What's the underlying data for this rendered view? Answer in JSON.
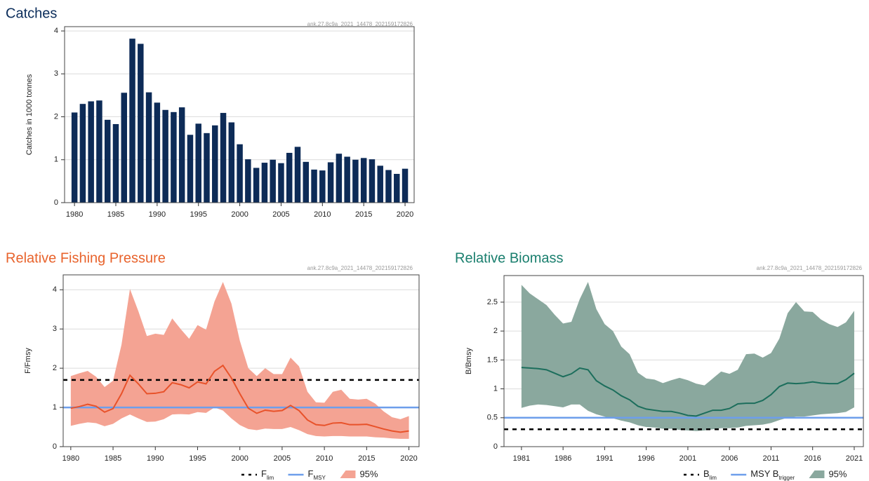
{
  "chart_data": [
    {
      "type": "bar",
      "title": "Catches",
      "title_color": "#0b2d5b",
      "subtitle": "ank.27.8c9a_2021_14478_202159172826",
      "y_label": "Catches in 1000 tonnes",
      "color": "#0d2b57",
      "grid": true,
      "x": [
        1980,
        1981,
        1982,
        1983,
        1984,
        1985,
        1986,
        1987,
        1988,
        1989,
        1990,
        1991,
        1992,
        1993,
        1994,
        1995,
        1996,
        1997,
        1998,
        1999,
        2000,
        2001,
        2002,
        2003,
        2004,
        2005,
        2006,
        2007,
        2008,
        2009,
        2010,
        2011,
        2012,
        2013,
        2014,
        2015,
        2016,
        2017,
        2018,
        2019,
        2020
      ],
      "values": [
        2.1,
        2.3,
        2.36,
        2.38,
        1.93,
        1.83,
        2.56,
        3.82,
        3.7,
        2.57,
        2.33,
        2.16,
        2.11,
        2.22,
        1.58,
        1.84,
        1.62,
        1.8,
        2.09,
        1.87,
        1.36,
        1.01,
        0.81,
        0.93,
        1.0,
        0.92,
        1.16,
        1.3,
        0.95,
        0.77,
        0.75,
        0.94,
        1.14,
        1.07,
        1.0,
        1.04,
        1.01,
        0.86,
        0.76,
        0.67,
        0.79
      ],
      "xlim": [
        1978.8,
        2021.1
      ],
      "xticks": [
        1980,
        1985,
        1990,
        1995,
        2000,
        2005,
        2010,
        2015,
        2020
      ],
      "ylim": [
        0,
        4.1
      ],
      "yticks": [
        0,
        1,
        2,
        3,
        4
      ]
    },
    {
      "type": "line",
      "title": "Relative Fishing Pressure",
      "title_color": "#e8632c",
      "subtitle": "ank.27.8c9a_2021_14478_202159172826",
      "y_label": "F/Fmsy",
      "grid": true,
      "x": [
        1980,
        1981,
        1982,
        1983,
        1984,
        1985,
        1986,
        1987,
        1988,
        1989,
        1990,
        1991,
        1992,
        1993,
        1994,
        1995,
        1996,
        1997,
        1998,
        1999,
        2000,
        2001,
        2002,
        2003,
        2004,
        2005,
        2006,
        2007,
        2008,
        2009,
        2010,
        2011,
        2012,
        2013,
        2014,
        2015,
        2016,
        2017,
        2018,
        2019,
        2020
      ],
      "series": [
        {
          "color": "#e8522a",
          "values": [
            0.98,
            1.02,
            1.08,
            1.03,
            0.88,
            0.97,
            1.35,
            1.82,
            1.6,
            1.35,
            1.36,
            1.4,
            1.63,
            1.58,
            1.5,
            1.65,
            1.6,
            1.92,
            2.07,
            1.75,
            1.35,
            0.98,
            0.85,
            0.93,
            0.9,
            0.92,
            1.05,
            0.92,
            0.68,
            0.56,
            0.54,
            0.6,
            0.61,
            0.56,
            0.56,
            0.57,
            0.51,
            0.45,
            0.4,
            0.37,
            0.4
          ]
        }
      ],
      "band": {
        "name": "95%",
        "color": "#f4a393",
        "upper": [
          1.8,
          1.87,
          1.93,
          1.78,
          1.52,
          1.68,
          2.6,
          4.02,
          3.45,
          2.82,
          2.88,
          2.85,
          3.27,
          3.0,
          2.75,
          3.1,
          2.98,
          3.7,
          4.2,
          3.65,
          2.7,
          2.0,
          1.8,
          2.0,
          1.85,
          1.85,
          2.27,
          2.05,
          1.4,
          1.13,
          1.12,
          1.4,
          1.45,
          1.22,
          1.2,
          1.22,
          1.1,
          0.9,
          0.75,
          0.7,
          0.78
        ],
        "lower": [
          0.53,
          0.58,
          0.62,
          0.6,
          0.52,
          0.58,
          0.72,
          0.82,
          0.72,
          0.63,
          0.64,
          0.7,
          0.82,
          0.83,
          0.82,
          0.88,
          0.86,
          1.0,
          0.92,
          0.72,
          0.55,
          0.45,
          0.42,
          0.46,
          0.45,
          0.45,
          0.5,
          0.42,
          0.32,
          0.27,
          0.26,
          0.27,
          0.27,
          0.26,
          0.26,
          0.26,
          0.24,
          0.23,
          0.21,
          0.2,
          0.2
        ]
      },
      "reference_lines": [
        {
          "name": "F",
          "name_sub": "lim",
          "value": 1.7,
          "color": "#000000",
          "dashed": true
        },
        {
          "name": "F",
          "name_sub": "MSY",
          "value": 1,
          "color": "#6d9eeb",
          "dashed": false
        }
      ],
      "xlim": [
        1979.1,
        2021.2
      ],
      "xticks": [
        1980,
        1985,
        1990,
        1995,
        2000,
        2005,
        2010,
        2015,
        2020
      ],
      "ylim": [
        0,
        4.38
      ],
      "yticks": [
        0,
        1,
        2,
        3,
        4
      ]
    },
    {
      "type": "line",
      "title": "Relative Biomass",
      "title_color": "#1a7f6e",
      "subtitle": "ank.27.8c9a_2021_14478_202159172826",
      "y_label": "B/Bmsy",
      "grid": true,
      "x": [
        1981,
        1982,
        1983,
        1984,
        1985,
        1986,
        1987,
        1988,
        1989,
        1990,
        1991,
        1992,
        1993,
        1994,
        1995,
        1996,
        1997,
        1998,
        1999,
        2000,
        2001,
        2002,
        2003,
        2004,
        2005,
        2006,
        2007,
        2008,
        2009,
        2010,
        2011,
        2012,
        2013,
        2014,
        2015,
        2016,
        2017,
        2018,
        2019,
        2020,
        2021
      ],
      "series": [
        {
          "color": "#1c6e5c",
          "values": [
            1.37,
            1.36,
            1.35,
            1.33,
            1.27,
            1.21,
            1.26,
            1.36,
            1.33,
            1.14,
            1.05,
            0.98,
            0.88,
            0.81,
            0.7,
            0.65,
            0.63,
            0.61,
            0.61,
            0.58,
            0.54,
            0.53,
            0.58,
            0.63,
            0.63,
            0.66,
            0.74,
            0.75,
            0.75,
            0.8,
            0.9,
            1.04,
            1.1,
            1.09,
            1.1,
            1.12,
            1.1,
            1.09,
            1.09,
            1.16,
            1.27
          ]
        }
      ],
      "band": {
        "name": "95%",
        "color": "#8aa89e",
        "upper": [
          2.8,
          2.65,
          2.55,
          2.45,
          2.28,
          2.13,
          2.16,
          2.55,
          2.85,
          2.38,
          2.12,
          2.0,
          1.73,
          1.6,
          1.28,
          1.18,
          1.16,
          1.1,
          1.15,
          1.19,
          1.15,
          1.09,
          1.06,
          1.18,
          1.3,
          1.26,
          1.33,
          1.6,
          1.61,
          1.54,
          1.62,
          1.87,
          2.31,
          2.5,
          2.34,
          2.33,
          2.2,
          2.12,
          2.07,
          2.15,
          2.35
        ],
        "lower": [
          0.67,
          0.71,
          0.73,
          0.72,
          0.7,
          0.68,
          0.73,
          0.73,
          0.62,
          0.56,
          0.52,
          0.49,
          0.45,
          0.42,
          0.37,
          0.34,
          0.33,
          0.31,
          0.31,
          0.29,
          0.28,
          0.27,
          0.28,
          0.3,
          0.32,
          0.32,
          0.33,
          0.36,
          0.37,
          0.38,
          0.41,
          0.46,
          0.5,
          0.52,
          0.52,
          0.54,
          0.56,
          0.57,
          0.58,
          0.6,
          0.68
        ]
      },
      "reference_lines": [
        {
          "name": "B",
          "name_sub": "lim",
          "value": 0.3,
          "color": "#000000",
          "dashed": true
        },
        {
          "name": "MSY B",
          "name_sub": "trigger",
          "value": 0.5,
          "color": "#6d9eeb",
          "dashed": false
        }
      ],
      "xlim": [
        1978.9,
        2022.1
      ],
      "xticks": [
        1981,
        1986,
        1991,
        1996,
        2001,
        2006,
        2011,
        2016,
        2021
      ],
      "ylim": [
        0,
        2.96
      ],
      "yticks": [
        0,
        0.5,
        1,
        1.5,
        2,
        2.5
      ]
    }
  ]
}
